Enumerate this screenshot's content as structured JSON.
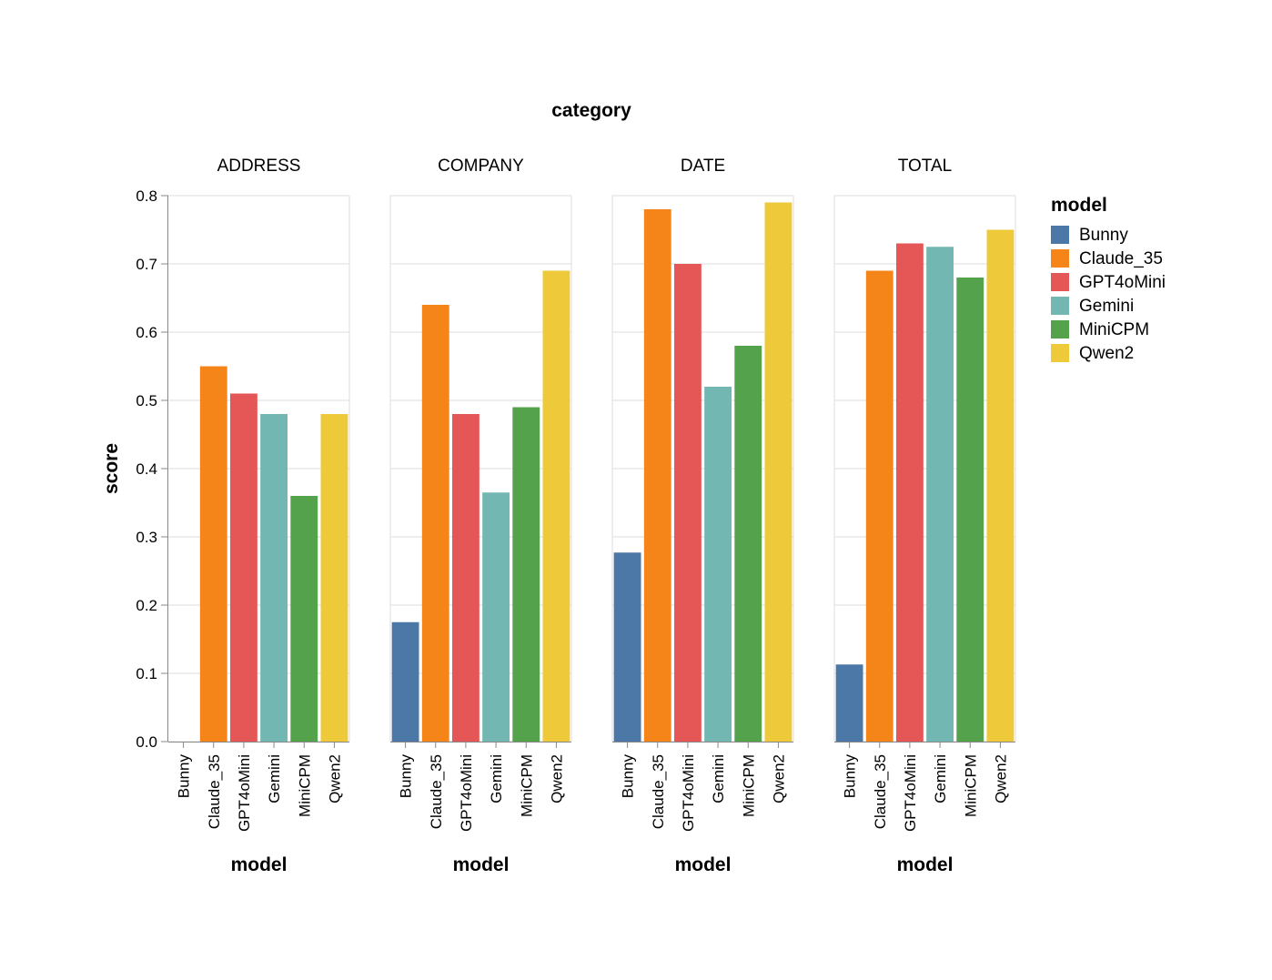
{
  "chart_data": {
    "type": "bar",
    "facet_header": "category",
    "facets": [
      "ADDRESS",
      "COMPANY",
      "DATE",
      "TOTAL"
    ],
    "categories": [
      "Bunny",
      "Claude_35",
      "GPT4oMini",
      "Gemini",
      "MiniCPM",
      "Qwen2"
    ],
    "values": {
      "ADDRESS": [
        0.0,
        0.55,
        0.51,
        0.48,
        0.36,
        0.48
      ],
      "COMPANY": [
        0.175,
        0.64,
        0.48,
        0.365,
        0.49,
        0.69
      ],
      "DATE": [
        0.277,
        0.78,
        0.7,
        0.52,
        0.58,
        0.79
      ],
      "TOTAL": [
        0.113,
        0.69,
        0.73,
        0.725,
        0.68,
        0.75
      ]
    },
    "xlabel": "model",
    "ylabel": "score",
    "ylim": [
      0,
      0.8
    ],
    "yticks": [
      "0.0",
      "0.1",
      "0.2",
      "0.3",
      "0.4",
      "0.5",
      "0.6",
      "0.7",
      "0.8"
    ],
    "grid": true,
    "legend": {
      "title": "model",
      "placement": "right",
      "entries": [
        "Bunny",
        "Claude_35",
        "GPT4oMini",
        "Gemini",
        "MiniCPM",
        "Qwen2"
      ]
    },
    "colors": [
      "#4c78a8",
      "#f58518",
      "#e45756",
      "#72b7b2",
      "#54a24b",
      "#eeca3b"
    ]
  }
}
